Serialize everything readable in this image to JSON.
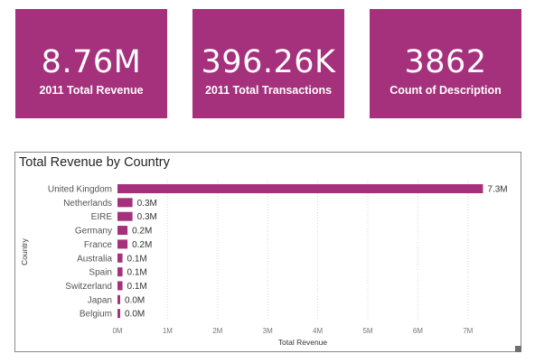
{
  "cards": [
    {
      "value": "8.76M",
      "label": "2011 Total Revenue"
    },
    {
      "value": "396.26K",
      "label": "2011 Total Transactions"
    },
    {
      "value": "3862",
      "label": "Count of Description"
    }
  ],
  "colors": {
    "accent": "#a5307c",
    "grid": "#d8d8d8"
  },
  "chart_data": {
    "type": "bar",
    "orientation": "horizontal",
    "title": "Total Revenue by Country",
    "xlabel": "Total Revenue",
    "ylabel": "Country",
    "categories": [
      "United Kingdom",
      "Netherlands",
      "EIRE",
      "Germany",
      "France",
      "Australia",
      "Spain",
      "Switzerland",
      "Japan",
      "Belgium"
    ],
    "values": [
      7.3,
      0.3,
      0.3,
      0.2,
      0.2,
      0.1,
      0.1,
      0.1,
      0.0,
      0.0
    ],
    "value_units": "M",
    "data_labels": [
      "7.3M",
      "0.3M",
      "0.3M",
      "0.2M",
      "0.2M",
      "0.1M",
      "0.1M",
      "0.1M",
      "0.0M",
      "0.0M"
    ],
    "xlim": [
      0,
      7.5
    ],
    "xticks": [
      0,
      1,
      2,
      3,
      4,
      5,
      6,
      7
    ],
    "xtick_labels": [
      "0M",
      "1M",
      "2M",
      "3M",
      "4M",
      "5M",
      "6M",
      "7M"
    ],
    "grid": "vertical dotted"
  }
}
